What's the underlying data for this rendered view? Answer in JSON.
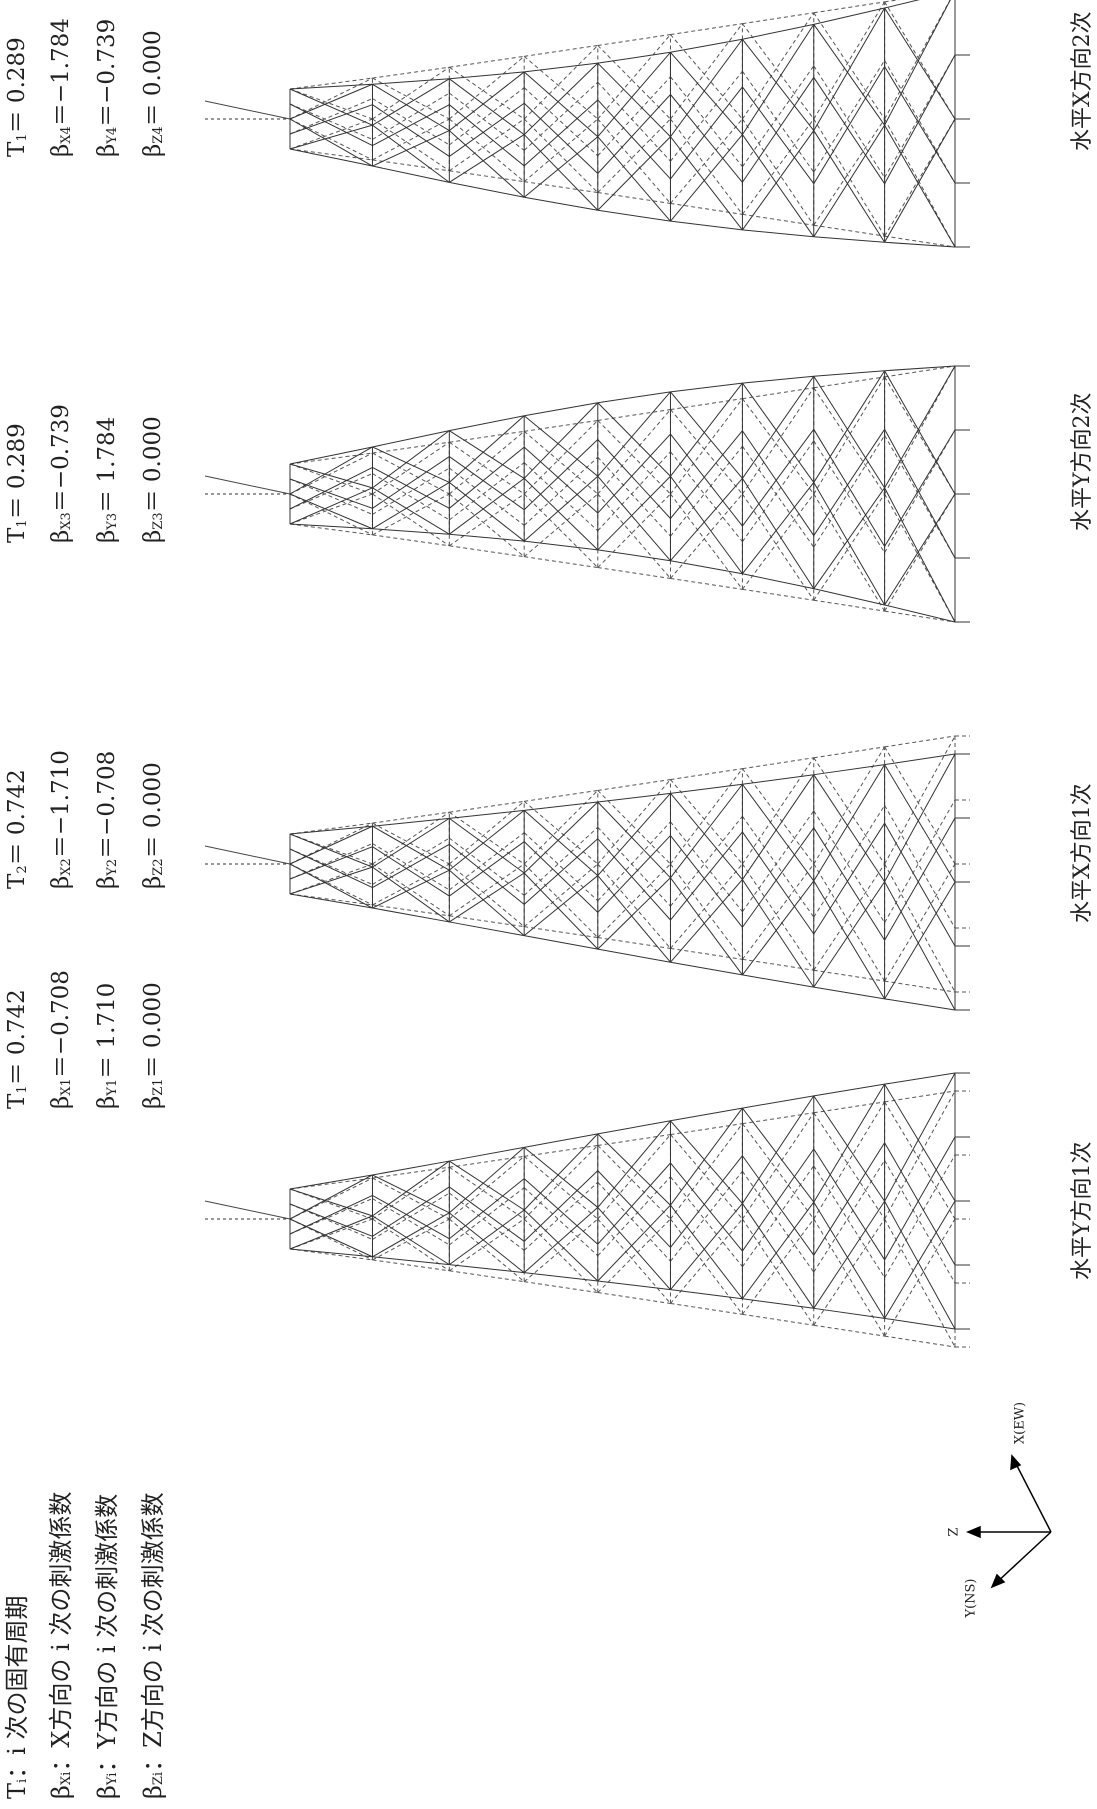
{
  "legend": [
    {
      "symbol": "T",
      "sub": "i",
      "text": "：i 次の固有周期"
    },
    {
      "symbol": "β",
      "sub": "Xi",
      "text": "：X方向の i 次の刺激係数"
    },
    {
      "symbol": "β",
      "sub": "Yi",
      "text": "：Y方向の i 次の刺激係数"
    },
    {
      "symbol": "β",
      "sub": "Zi",
      "text": "：Z方向の i 次の刺激係数"
    }
  ],
  "axes": {
    "z": "Z",
    "x": "X(EW)",
    "y": "Y(NS)"
  },
  "panels": [
    {
      "caption": "水平Y方向1次",
      "params": [
        {
          "symbol": "T",
          "sub": "1",
          "text": "＝ 0.742"
        },
        {
          "symbol": "β",
          "sub": "X1",
          "text": "＝−0.708"
        },
        {
          "symbol": "β",
          "sub": "Y1",
          "text": "＝ 1.710"
        },
        {
          "symbol": "β",
          "sub": "Z1",
          "text": "＝ 0.000"
        }
      ]
    },
    {
      "caption": "水平X方向1次",
      "params": [
        {
          "symbol": "T",
          "sub": "2",
          "text": "＝ 0.742"
        },
        {
          "symbol": "β",
          "sub": "X2",
          "text": "＝−1.710"
        },
        {
          "symbol": "β",
          "sub": "Y2",
          "text": "＝−0.708"
        },
        {
          "symbol": "β",
          "sub": "Z2",
          "text": "＝ 0.000"
        }
      ]
    },
    {
      "caption": "水平Y方向2次",
      "params": [
        {
          "symbol": "T",
          "sub": "1",
          "text": "＝ 0.289"
        },
        {
          "symbol": "β",
          "sub": "X3",
          "text": "＝−0.739"
        },
        {
          "symbol": "β",
          "sub": "Y3",
          "text": "＝ 1.784"
        },
        {
          "symbol": "β",
          "sub": "Z3",
          "text": "＝ 0.000"
        }
      ]
    },
    {
      "caption": "水平X方向2次",
      "params": [
        {
          "symbol": "T",
          "sub": "1",
          "text": "＝ 0.289"
        },
        {
          "symbol": "β",
          "sub": "X4",
          "text": "＝−1.784"
        },
        {
          "symbol": "β",
          "sub": "Y4",
          "text": "＝−0.739"
        },
        {
          "symbol": "β",
          "sub": "Z4",
          "text": "＝ 0.000"
        }
      ]
    }
  ]
}
